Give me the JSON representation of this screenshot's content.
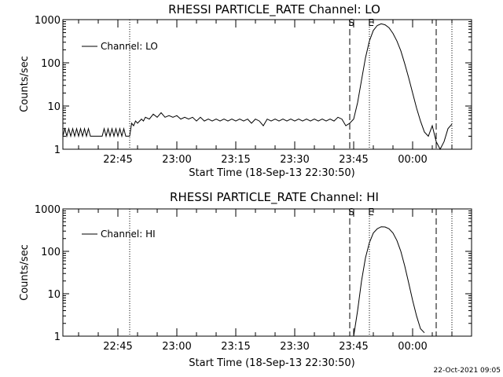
{
  "footer_timestamp": "22-Oct-2021 09:05",
  "colors": {
    "background": "#ffffff",
    "foreground": "#000000"
  },
  "chart_data": [
    {
      "type": "line",
      "title": "RHESSI PARTICLE_RATE Channel: LO",
      "xlabel": "Start Time (18-Sep-13 22:30:50)",
      "ylabel": "Counts/sec",
      "yscale": "log",
      "ylim": [
        1,
        1000
      ],
      "xlim": [
        "22:31",
        "00:15"
      ],
      "x_ticks": [
        "22:45",
        "23:00",
        "23:15",
        "23:30",
        "23:45",
        "00:00"
      ],
      "y_ticks": [
        "1",
        "10",
        "100",
        "1000"
      ],
      "legend": {
        "label": "Channel: LO",
        "position": "top-left"
      },
      "markers": [
        {
          "time": "22:48",
          "label": "",
          "style": "dotted"
        },
        {
          "time": "23:44",
          "label": "S",
          "style": "dashed"
        },
        {
          "time": "23:49",
          "label": "E",
          "style": "dotted"
        },
        {
          "time": "00:06",
          "label": "",
          "style": "dashed"
        },
        {
          "time": "00:10",
          "label": "",
          "style": "dotted"
        }
      ],
      "series": [
        {
          "name": "Channel: LO",
          "points": [
            [
              "22:31",
              2
            ],
            [
              "22:31:30",
              3
            ],
            [
              "22:32",
              2
            ],
            [
              "22:32:30",
              3
            ],
            [
              "22:33",
              2
            ],
            [
              "22:33:30",
              3
            ],
            [
              "22:34",
              2
            ],
            [
              "22:34:30",
              3
            ],
            [
              "22:35",
              2
            ],
            [
              "22:35:30",
              3
            ],
            [
              "22:36",
              2
            ],
            [
              "22:36:30",
              3
            ],
            [
              "22:37",
              2
            ],
            [
              "22:37:30",
              3
            ],
            [
              "22:38",
              2
            ],
            [
              "22:38:30",
              2
            ],
            [
              "22:39",
              2
            ],
            [
              "22:40",
              2
            ],
            [
              "22:41",
              2
            ],
            [
              "22:41:30",
              3
            ],
            [
              "22:42",
              2
            ],
            [
              "22:42:30",
              3
            ],
            [
              "22:43",
              2
            ],
            [
              "22:43:30",
              3
            ],
            [
              "22:44",
              2
            ],
            [
              "22:44:30",
              3
            ],
            [
              "22:45",
              2
            ],
            [
              "22:45:30",
              3
            ],
            [
              "22:46",
              2
            ],
            [
              "22:46:30",
              3
            ],
            [
              "22:47",
              2
            ],
            [
              "22:47:30",
              2
            ],
            [
              "22:48",
              2
            ],
            [
              "22:48:30",
              4
            ],
            [
              "22:49",
              3.5
            ],
            [
              "22:49:30",
              4.5
            ],
            [
              "22:50",
              4
            ],
            [
              "22:51",
              5
            ],
            [
              "22:51:30",
              4.5
            ],
            [
              "22:52",
              5.5
            ],
            [
              "22:53",
              5
            ],
            [
              "22:54",
              6.5
            ],
            [
              "22:55",
              5.5
            ],
            [
              "22:56",
              7
            ],
            [
              "22:57",
              5.5
            ],
            [
              "22:58",
              6
            ],
            [
              "22:59",
              5.5
            ],
            [
              "23:00",
              6
            ],
            [
              "23:01",
              5
            ],
            [
              "23:02",
              5.5
            ],
            [
              "23:03",
              5
            ],
            [
              "23:04",
              5.5
            ],
            [
              "23:05",
              4.5
            ],
            [
              "23:06",
              5.5
            ],
            [
              "23:07",
              4.5
            ],
            [
              "23:08",
              5
            ],
            [
              "23:09",
              4.5
            ],
            [
              "23:10",
              5
            ],
            [
              "23:11",
              4.5
            ],
            [
              "23:12",
              5
            ],
            [
              "23:13",
              4.5
            ],
            [
              "23:14",
              5
            ],
            [
              "23:15",
              4.5
            ],
            [
              "23:16",
              5
            ],
            [
              "23:17",
              4.5
            ],
            [
              "23:18",
              5
            ],
            [
              "23:19",
              4
            ],
            [
              "23:20",
              5
            ],
            [
              "23:21",
              4.5
            ],
            [
              "23:22",
              3.5
            ],
            [
              "23:23",
              5
            ],
            [
              "23:24",
              4.5
            ],
            [
              "23:25",
              5
            ],
            [
              "23:26",
              4.5
            ],
            [
              "23:27",
              5
            ],
            [
              "23:28",
              4.5
            ],
            [
              "23:29",
              5
            ],
            [
              "23:30",
              4.5
            ],
            [
              "23:31",
              5
            ],
            [
              "23:32",
              4.5
            ],
            [
              "23:33",
              5
            ],
            [
              "23:34",
              4.5
            ],
            [
              "23:35",
              5
            ],
            [
              "23:36",
              4.5
            ],
            [
              "23:37",
              5
            ],
            [
              "23:38",
              4.5
            ],
            [
              "23:39",
              5
            ],
            [
              "23:40",
              4.5
            ],
            [
              "23:41",
              5.5
            ],
            [
              "23:42",
              5
            ],
            [
              "23:43",
              3.5
            ],
            [
              "23:44",
              4
            ],
            [
              "23:45",
              5
            ],
            [
              "23:46",
              12
            ],
            [
              "23:47",
              40
            ],
            [
              "23:48",
              130
            ],
            [
              "23:49",
              320
            ],
            [
              "23:50",
              560
            ],
            [
              "23:51",
              730
            ],
            [
              "23:52",
              800
            ],
            [
              "23:53",
              760
            ],
            [
              "23:54",
              650
            ],
            [
              "23:55",
              480
            ],
            [
              "23:56",
              320
            ],
            [
              "23:57",
              190
            ],
            [
              "23:58",
              95
            ],
            [
              "23:59",
              45
            ],
            [
              "00:00",
              20
            ],
            [
              "00:01",
              9
            ],
            [
              "00:02",
              4.5
            ],
            [
              "00:03",
              2.5
            ],
            [
              "00:04",
              2
            ],
            [
              "00:05",
              3.5
            ],
            [
              "00:06",
              1.5
            ],
            [
              "00:07",
              1
            ],
            [
              "00:08",
              1.5
            ],
            [
              "00:09",
              3
            ],
            [
              "00:10",
              3.8
            ]
          ]
        }
      ]
    },
    {
      "type": "line",
      "title": "RHESSI PARTICLE_RATE Channel: HI",
      "xlabel": "Start Time (18-Sep-13 22:30:50)",
      "ylabel": "Counts/sec",
      "yscale": "log",
      "ylim": [
        1,
        1000
      ],
      "xlim": [
        "22:31",
        "00:15"
      ],
      "x_ticks": [
        "22:45",
        "23:00",
        "23:15",
        "23:30",
        "23:45",
        "00:00"
      ],
      "y_ticks": [
        "1",
        "10",
        "100",
        "1000"
      ],
      "legend": {
        "label": "Channel: HI",
        "position": "top-left"
      },
      "markers": [
        {
          "time": "22:48",
          "label": "",
          "style": "dotted"
        },
        {
          "time": "23:44",
          "label": "S",
          "style": "dashed"
        },
        {
          "time": "23:49",
          "label": "E",
          "style": "dotted"
        },
        {
          "time": "00:06",
          "label": "",
          "style": "dashed"
        },
        {
          "time": "00:10",
          "label": "",
          "style": "dotted"
        }
      ],
      "series": [
        {
          "name": "Channel: HI",
          "points": [
            [
              "23:45",
              1
            ],
            [
              "23:46",
              4
            ],
            [
              "23:47",
              20
            ],
            [
              "23:48",
              70
            ],
            [
              "23:49",
              160
            ],
            [
              "23:50",
              270
            ],
            [
              "23:51",
              340
            ],
            [
              "23:52",
              380
            ],
            [
              "23:53",
              375
            ],
            [
              "23:54",
              340
            ],
            [
              "23:55",
              270
            ],
            [
              "23:56",
              180
            ],
            [
              "23:57",
              100
            ],
            [
              "23:58",
              45
            ],
            [
              "23:59",
              18
            ],
            [
              "00:00",
              7
            ],
            [
              "00:01",
              3
            ],
            [
              "00:02",
              1.5
            ],
            [
              "00:03",
              1.2
            ]
          ]
        }
      ]
    }
  ]
}
